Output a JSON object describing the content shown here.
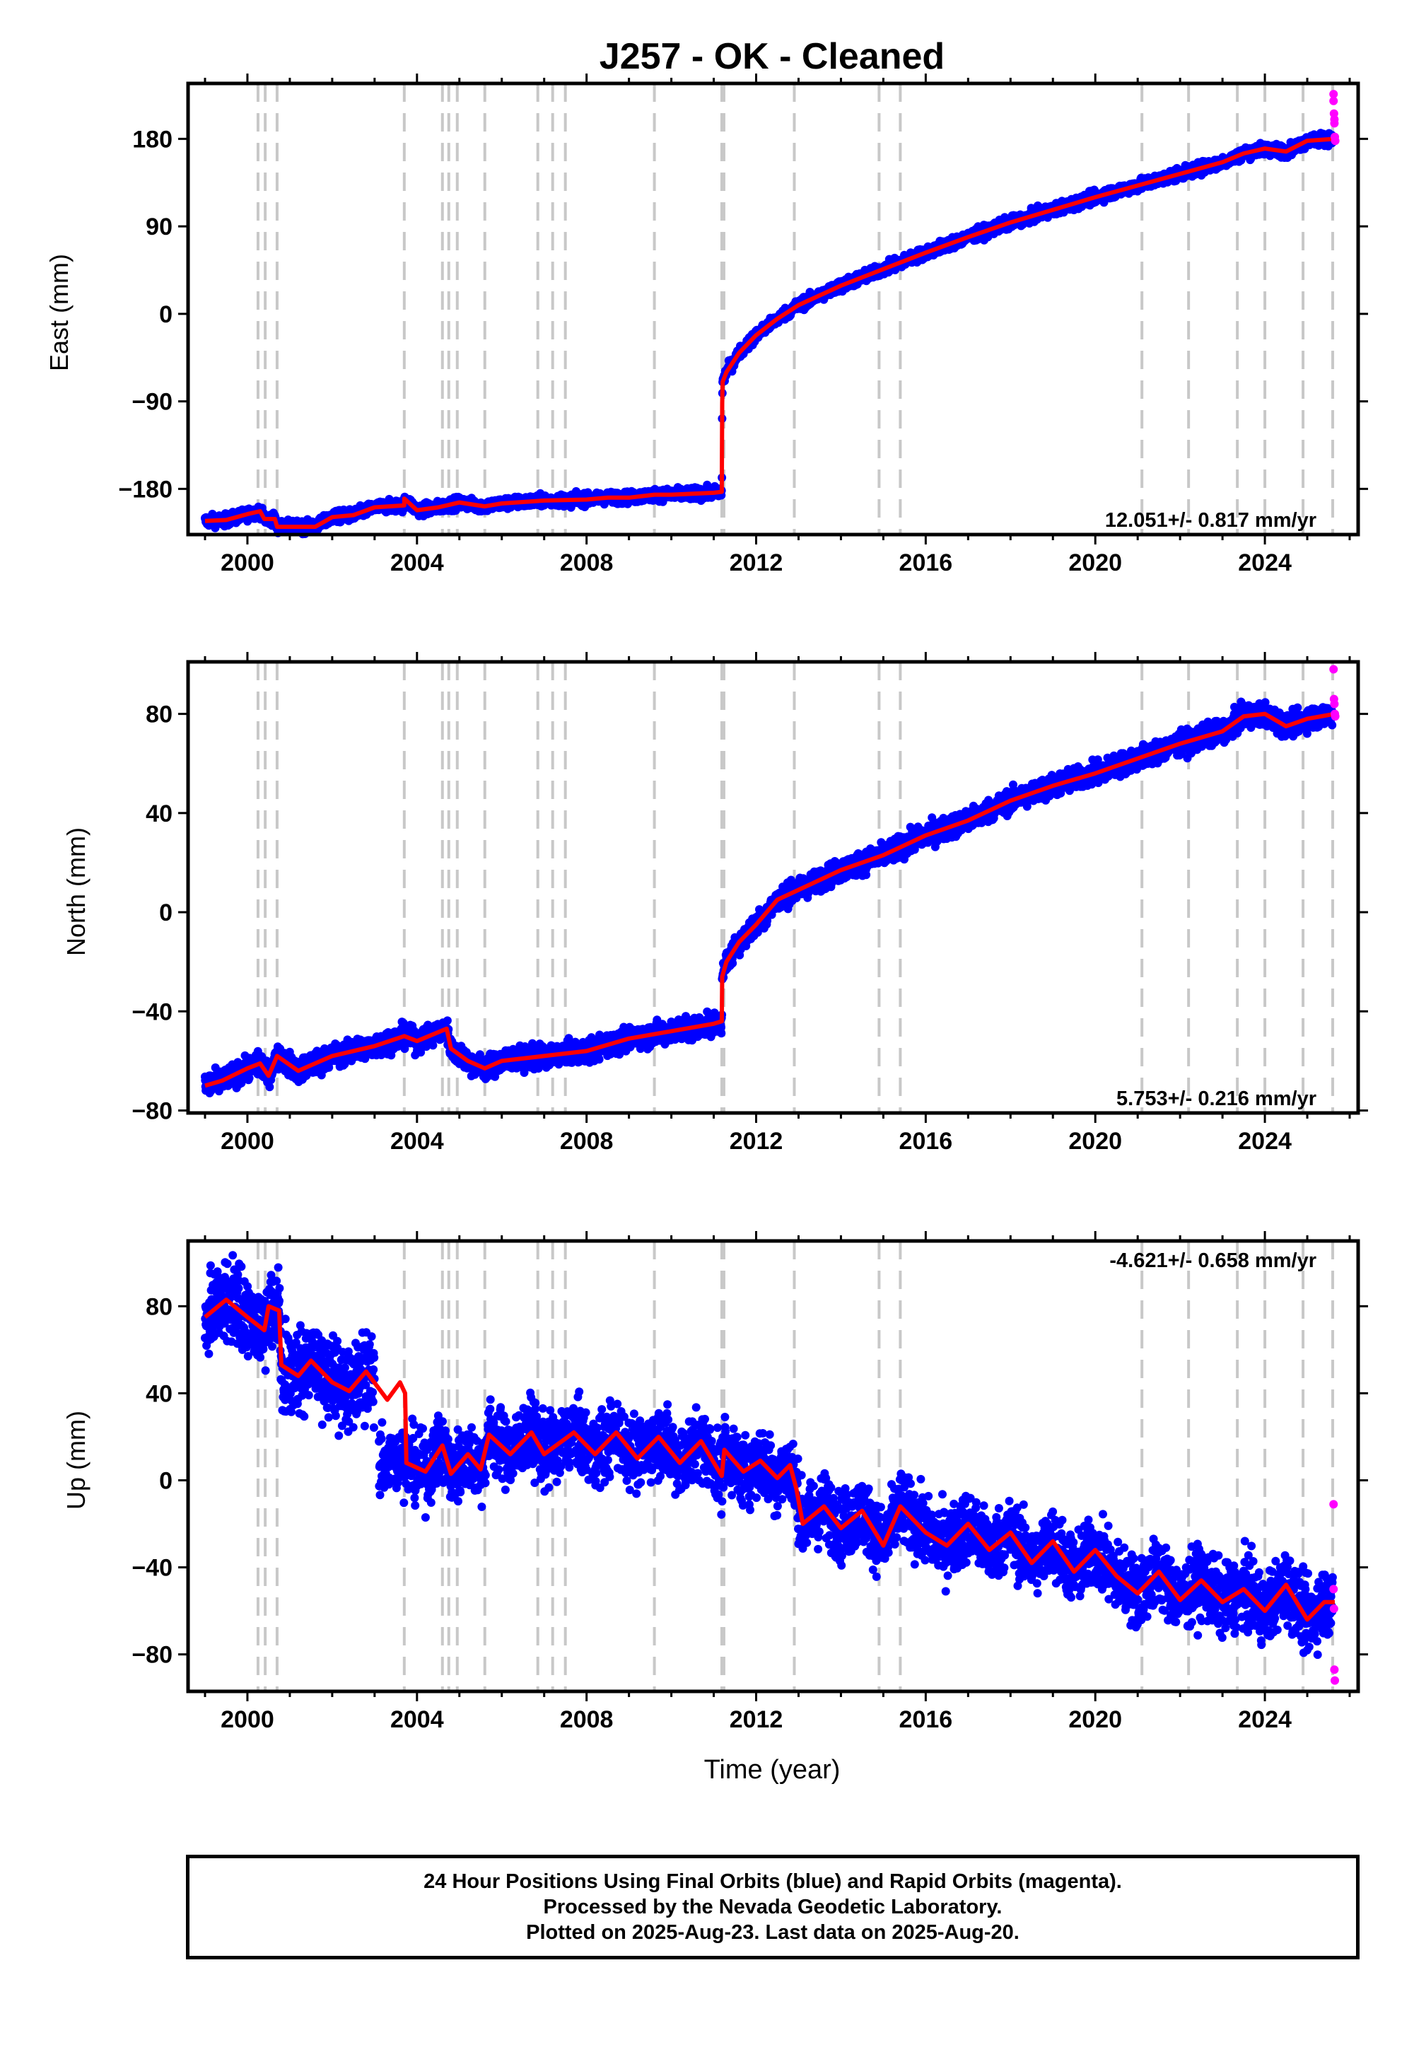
{
  "chart_data": {
    "type": "scatter",
    "title": "J257  - OK - Cleaned",
    "xlabel": "Time (year)",
    "xlim": [
      1998.6,
      2026.2
    ],
    "xticks": [
      2000,
      2004,
      2008,
      2012,
      2016,
      2020,
      2024
    ],
    "xtick_labels": [
      "2000",
      "2004",
      "2008",
      "2012",
      "2016",
      "2020",
      "2024"
    ],
    "grid": false,
    "equipment_changes": [
      2000.25,
      2000.42,
      2000.7,
      2003.7,
      2004.6,
      2004.75,
      2004.95,
      2005.6,
      2006.85,
      2007.2,
      2007.5,
      2009.6,
      2011.19,
      2011.24,
      2012.9,
      2014.9,
      2015.4,
      2021.1,
      2022.2,
      2023.35,
      2024.0,
      2024.9,
      2025.6
    ],
    "series_colors": {
      "final_orbits": "#0000ff",
      "rapid_orbits": "#ff00ff",
      "model": "#ff0000",
      "markers": "#c8c8c8"
    },
    "panels": [
      {
        "component": "east",
        "ylabel": "East (mm)",
        "ylim": [
          -227,
          237
        ],
        "yticks": [
          -180,
          -90,
          0,
          90,
          180
        ],
        "ytick_labels": [
          "−180",
          "−90",
          "0",
          "90",
          "180"
        ],
        "rate_label": "12.051+/- 0.817 mm/yr",
        "rate_position": "bottom-right",
        "model": [
          [
            1999.0,
            -213
          ],
          [
            1999.5,
            -212
          ],
          [
            2000.0,
            -206
          ],
          [
            2000.3,
            -203
          ],
          [
            2000.4,
            -211
          ],
          [
            2000.65,
            -211
          ],
          [
            2000.7,
            -219
          ],
          [
            2001.6,
            -219
          ],
          [
            2002.0,
            -209
          ],
          [
            2002.5,
            -207
          ],
          [
            2003.0,
            -199
          ],
          [
            2003.7,
            -197
          ],
          [
            2003.7,
            -190
          ],
          [
            2004.0,
            -202
          ],
          [
            2004.5,
            -199
          ],
          [
            2005.0,
            -194
          ],
          [
            2005.6,
            -198
          ],
          [
            2006.0,
            -195
          ],
          [
            2007.0,
            -192
          ],
          [
            2008.0,
            -191
          ],
          [
            2008.5,
            -189
          ],
          [
            2009.0,
            -189
          ],
          [
            2009.6,
            -186
          ],
          [
            2010.0,
            -186
          ],
          [
            2010.5,
            -185
          ],
          [
            2011.0,
            -184
          ],
          [
            2011.19,
            -183
          ],
          [
            2011.2,
            -92
          ],
          [
            2011.21,
            -70
          ],
          [
            2011.3,
            -60
          ],
          [
            2011.6,
            -40
          ],
          [
            2012.0,
            -22
          ],
          [
            2012.5,
            -5
          ],
          [
            2013.0,
            9
          ],
          [
            2014.0,
            29
          ],
          [
            2015.0,
            46
          ],
          [
            2016.0,
            63
          ],
          [
            2017.0,
            79
          ],
          [
            2018.0,
            94
          ],
          [
            2019.0,
            107
          ],
          [
            2020.0,
            120
          ],
          [
            2021.0,
            132
          ],
          [
            2022.0,
            144
          ],
          [
            2023.0,
            156
          ],
          [
            2023.5,
            165
          ],
          [
            2024.0,
            170
          ],
          [
            2024.5,
            167
          ],
          [
            2025.0,
            178
          ],
          [
            2025.65,
            180
          ]
        ],
        "rapid": [
          [
            2025.62,
            226
          ],
          [
            2025.62,
            219
          ],
          [
            2025.63,
            206
          ],
          [
            2025.64,
            200
          ],
          [
            2025.64,
            196
          ],
          [
            2025.65,
            182
          ],
          [
            2025.66,
            178
          ]
        ]
      },
      {
        "component": "north",
        "ylabel": "North (mm)",
        "ylim": [
          -81,
          101
        ],
        "yticks": [
          -80,
          -40,
          0,
          40,
          80
        ],
        "ytick_labels": [
          "−80",
          "−40",
          "0",
          "40",
          "80"
        ],
        "rate_label": "5.753+/- 0.216 mm/yr",
        "rate_position": "bottom-right",
        "model": [
          [
            1999.0,
            -70
          ],
          [
            1999.4,
            -68
          ],
          [
            2000.0,
            -63
          ],
          [
            2000.3,
            -61
          ],
          [
            2000.5,
            -66
          ],
          [
            2000.7,
            -58
          ],
          [
            2001.2,
            -64
          ],
          [
            2002.0,
            -58
          ],
          [
            2003.0,
            -54
          ],
          [
            2003.7,
            -50
          ],
          [
            2004.0,
            -52
          ],
          [
            2004.7,
            -47
          ],
          [
            2004.8,
            -55
          ],
          [
            2005.2,
            -60
          ],
          [
            2005.6,
            -63
          ],
          [
            2006.0,
            -60
          ],
          [
            2007.0,
            -58
          ],
          [
            2008.0,
            -56
          ],
          [
            2009.0,
            -51
          ],
          [
            2010.0,
            -48
          ],
          [
            2011.0,
            -45
          ],
          [
            2011.19,
            -44
          ],
          [
            2011.2,
            -26
          ],
          [
            2011.3,
            -20
          ],
          [
            2011.6,
            -12
          ],
          [
            2012.0,
            -5
          ],
          [
            2012.5,
            5
          ],
          [
            2013.0,
            9
          ],
          [
            2014.0,
            17
          ],
          [
            2015.0,
            23
          ],
          [
            2016.0,
            31
          ],
          [
            2017.0,
            37
          ],
          [
            2018.0,
            45
          ],
          [
            2019.0,
            51
          ],
          [
            2020.0,
            56
          ],
          [
            2021.0,
            62
          ],
          [
            2022.0,
            68
          ],
          [
            2023.0,
            73
          ],
          [
            2023.5,
            79
          ],
          [
            2024.0,
            80
          ],
          [
            2024.5,
            75
          ],
          [
            2025.0,
            78
          ],
          [
            2025.65,
            80
          ]
        ],
        "rapid": [
          [
            2025.62,
            98
          ],
          [
            2025.63,
            86
          ],
          [
            2025.64,
            84
          ],
          [
            2025.65,
            80
          ],
          [
            2025.66,
            79
          ]
        ]
      },
      {
        "component": "up",
        "ylabel": "Up (mm)",
        "ylim": [
          -97,
          110
        ],
        "yticks": [
          -80,
          -40,
          0,
          40,
          80
        ],
        "ytick_labels": [
          "−80",
          "−40",
          "0",
          "40",
          "80"
        ],
        "rate_label": "-4.621+/- 0.658 mm/yr",
        "rate_position": "top-right",
        "model": [
          [
            1999.0,
            75
          ],
          [
            1999.5,
            83
          ],
          [
            2000.0,
            75
          ],
          [
            2000.4,
            69
          ],
          [
            2000.5,
            80
          ],
          [
            2000.75,
            78
          ],
          [
            2000.8,
            53
          ],
          [
            2001.2,
            48
          ],
          [
            2001.5,
            55
          ],
          [
            2002.0,
            45
          ],
          [
            2002.4,
            41
          ],
          [
            2002.8,
            50
          ],
          [
            2003.3,
            37
          ],
          [
            2003.6,
            45
          ],
          [
            2003.72,
            40
          ],
          [
            2003.75,
            8
          ],
          [
            2004.2,
            4
          ],
          [
            2004.6,
            16
          ],
          [
            2004.8,
            3
          ],
          [
            2005.2,
            12
          ],
          [
            2005.5,
            5
          ],
          [
            2005.7,
            21
          ],
          [
            2006.2,
            12
          ],
          [
            2006.7,
            22
          ],
          [
            2007.0,
            12
          ],
          [
            2007.7,
            22
          ],
          [
            2008.2,
            12
          ],
          [
            2008.7,
            22
          ],
          [
            2009.2,
            10
          ],
          [
            2009.7,
            20
          ],
          [
            2010.2,
            8
          ],
          [
            2010.7,
            18
          ],
          [
            2011.19,
            2
          ],
          [
            2011.25,
            14
          ],
          [
            2011.7,
            4
          ],
          [
            2012.1,
            9
          ],
          [
            2012.5,
            1
          ],
          [
            2012.8,
            7
          ],
          [
            2012.95,
            -4
          ],
          [
            2013.1,
            -20
          ],
          [
            2013.6,
            -12
          ],
          [
            2014.0,
            -22
          ],
          [
            2014.5,
            -14
          ],
          [
            2015.0,
            -30
          ],
          [
            2015.4,
            -12
          ],
          [
            2016.0,
            -24
          ],
          [
            2016.5,
            -30
          ],
          [
            2017.0,
            -20
          ],
          [
            2017.5,
            -32
          ],
          [
            2018.0,
            -24
          ],
          [
            2018.5,
            -38
          ],
          [
            2019.0,
            -28
          ],
          [
            2019.5,
            -42
          ],
          [
            2020.0,
            -32
          ],
          [
            2020.5,
            -44
          ],
          [
            2021.0,
            -52
          ],
          [
            2021.5,
            -42
          ],
          [
            2022.0,
            -55
          ],
          [
            2022.5,
            -46
          ],
          [
            2023.0,
            -56
          ],
          [
            2023.5,
            -50
          ],
          [
            2024.0,
            -60
          ],
          [
            2024.5,
            -48
          ],
          [
            2025.0,
            -64
          ],
          [
            2025.4,
            -56
          ],
          [
            2025.65,
            -56
          ]
        ],
        "rapid": [
          [
            2025.62,
            -11
          ],
          [
            2025.62,
            -50
          ],
          [
            2025.63,
            -59
          ],
          [
            2025.64,
            -87
          ],
          [
            2025.65,
            -92
          ]
        ]
      }
    ]
  },
  "footer": {
    "line1": "24 Hour Positions Using Final Orbits (blue) and Rapid Orbits (magenta).",
    "line2": "Processed by the Nevada Geodetic Laboratory.",
    "line3": "Plotted on 2025-Aug-23. Last data on 2025-Aug-20."
  }
}
